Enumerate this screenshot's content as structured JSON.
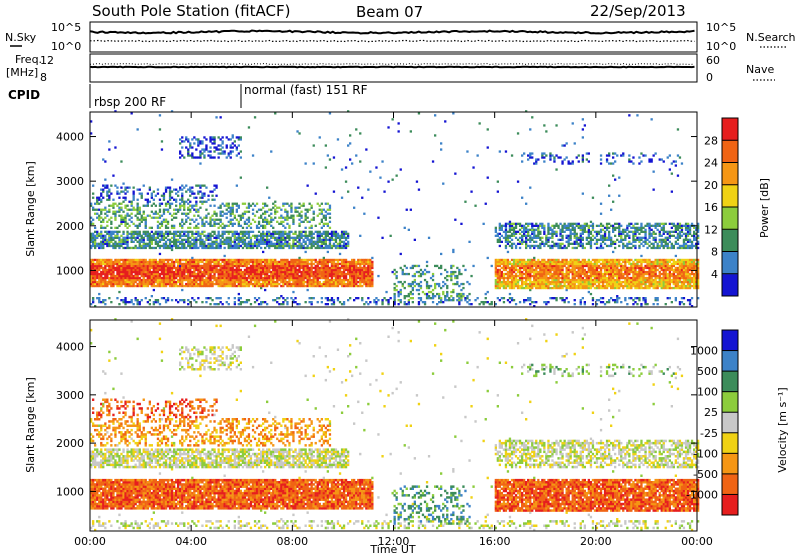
{
  "header": {
    "station": "South Pole Station (fitACF)",
    "beam": "Beam 07",
    "date": "22/Sep/2013"
  },
  "status_panel": {
    "left_labels": {
      "nsky": "N.Sky",
      "freq_line1": "Freq.",
      "freq_line2": "[MHz]",
      "cpid": "CPID"
    },
    "right_labels": {
      "nsearch": "N.Search",
      "nave": "Nave"
    },
    "noise_ticks": [
      "10^5",
      "10^0"
    ],
    "freq_ticks": [
      "12",
      "8"
    ],
    "nave_ticks": [
      "60",
      "0"
    ],
    "cpid_segments": [
      {
        "label": "rbsp 200 RF",
        "start_hour": 0
      },
      {
        "label": "normal (fast) 151 RF",
        "start_hour": 6
      }
    ]
  },
  "chart_data": [
    {
      "type": "heatmap",
      "panel": "power",
      "x_range_hours": [
        0,
        24
      ],
      "ylabel": "Slant Range [km]",
      "ylim": [
        180,
        4550
      ],
      "y_ticks": [
        1000,
        2000,
        3000,
        4000
      ],
      "colorbar": {
        "label": "Power [dB]",
        "ticks": [
          4,
          8,
          12,
          16,
          20,
          24,
          28
        ],
        "colors": [
          "#1414d2",
          "#3c82c8",
          "#3c8c5a",
          "#8ccc3c",
          "#f0d214",
          "#f59614",
          "#f06414",
          "#e61e1e"
        ]
      },
      "features": [
        {
          "hours": [
            0,
            11
          ],
          "range_km": [
            700,
            1200
          ],
          "dominant_power_db": 24
        },
        {
          "hours": [
            0,
            10
          ],
          "range_km": [
            1500,
            1800
          ],
          "dominant_power_db": 8
        },
        {
          "hours": [
            3.5,
            6
          ],
          "range_km": [
            3500,
            4000
          ],
          "dominant_power_db": 4
        },
        {
          "hours": [
            16,
            24
          ],
          "range_km": [
            600,
            1200
          ],
          "dominant_power_db": 20
        },
        {
          "hours": [
            16,
            24
          ],
          "range_km": [
            1500,
            2000
          ],
          "dominant_power_db": 8
        },
        {
          "hours": [
            17,
            23
          ],
          "range_km": [
            3300,
            3600
          ],
          "dominant_power_db": 4
        }
      ]
    },
    {
      "type": "heatmap",
      "panel": "velocity",
      "x_range_hours": [
        0,
        24
      ],
      "x_ticks": [
        "00:00",
        "04:00",
        "08:00",
        "12:00",
        "16:00",
        "20:00",
        "00:00"
      ],
      "xlabel": "Time UT",
      "ylabel": "Slant Range [km]",
      "ylim": [
        180,
        4550
      ],
      "y_ticks": [
        1000,
        2000,
        3000,
        4000
      ],
      "colorbar": {
        "label": "Velocity [m s⁻¹]",
        "ticks": [
          "1000",
          "500",
          "100",
          "25",
          "-25",
          "-100",
          "-500",
          "-1000"
        ],
        "colors": [
          "#e61e1e",
          "#f06414",
          "#f59614",
          "#f0d214",
          "#c8c8c8",
          "#8ccc3c",
          "#3c8c5a",
          "#3c82c8",
          "#1414d2"
        ]
      },
      "features": [
        {
          "hours": [
            0,
            11
          ],
          "range_km": [
            600,
            1300
          ],
          "dominant_velocity": "-100"
        },
        {
          "hours": [
            0,
            10
          ],
          "range_km": [
            1500,
            2000
          ],
          "dominant_velocity": "-25"
        },
        {
          "hours": [
            16,
            24
          ],
          "range_km": [
            500,
            1200
          ],
          "dominant_velocity": "-100"
        },
        {
          "hours": [
            17,
            24
          ],
          "range_km": [
            1500,
            2000
          ],
          "dominant_velocity": "-25"
        }
      ]
    }
  ]
}
